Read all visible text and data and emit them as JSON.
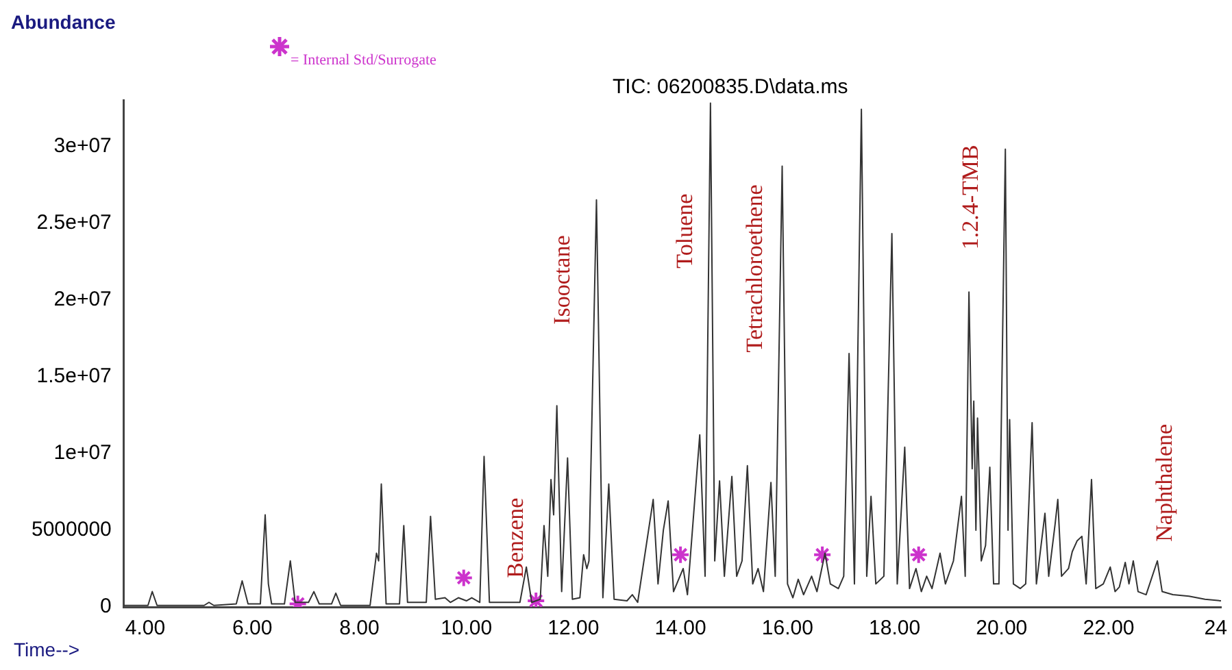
{
  "chart_data": {
    "type": "line",
    "title": "TIC: 06200835.D\\data.ms",
    "xlabel": "Time-->",
    "ylabel": "Abundance",
    "xlim": [
      3.6,
      24.1
    ],
    "ylim": [
      0,
      33000000.0
    ],
    "xticks": [
      {
        "value": 4,
        "label": "4.00"
      },
      {
        "value": 6,
        "label": "6.00"
      },
      {
        "value": 8,
        "label": "8.00"
      },
      {
        "value": 10,
        "label": "10.00"
      },
      {
        "value": 12,
        "label": "12.00"
      },
      {
        "value": 14,
        "label": "14.00"
      },
      {
        "value": 16,
        "label": "16.00"
      },
      {
        "value": 18,
        "label": "18.00"
      },
      {
        "value": 20,
        "label": "20.00"
      },
      {
        "value": 22,
        "label": "22.00"
      },
      {
        "value": 24,
        "label": "24"
      }
    ],
    "yticks": [
      0,
      5000000,
      {
        "value": 10000000.0,
        "label": "1e+07"
      },
      {
        "value": 15000000.0,
        "label": "1.5e+07"
      },
      {
        "value": 20000000.0,
        "label": "2e+07"
      },
      {
        "value": 25000000.0,
        "label": "2.5e+07"
      },
      {
        "value": 30000000.0,
        "label": "3e+07"
      }
    ],
    "grid": false,
    "legend": "top left",
    "series": [
      {
        "color": "#333333",
        "marker": "none",
        "x": [
          3.6,
          4.05,
          4.13,
          4.22,
          5.1,
          5.19,
          5.28,
          5.7,
          5.81,
          5.92,
          6.15,
          6.24,
          6.3,
          6.36,
          6.6,
          6.71,
          6.8,
          7.05,
          7.15,
          7.25,
          7.48,
          7.56,
          7.65,
          8.2,
          8.32,
          8.36,
          8.41,
          8.5,
          8.75,
          8.83,
          8.9,
          9.25,
          9.33,
          9.42,
          9.6,
          9.7,
          9.85,
          10.0,
          10.1,
          10.25,
          10.33,
          10.43,
          11.0,
          11.12,
          11.22,
          11.38,
          11.45,
          11.52,
          11.58,
          11.63,
          11.69,
          11.78,
          11.89,
          11.98,
          12.12,
          12.19,
          12.25,
          12.29,
          12.43,
          12.55,
          12.66,
          12.76,
          13.0,
          13.1,
          13.2,
          13.49,
          13.58,
          13.68,
          13.77,
          13.87,
          14.05,
          14.13,
          14.36,
          14.46,
          14.56,
          14.64,
          14.73,
          14.82,
          14.96,
          15.05,
          15.15,
          15.25,
          15.35,
          15.45,
          15.55,
          15.69,
          15.77,
          15.9,
          16.0,
          16.1,
          16.2,
          16.3,
          16.45,
          16.55,
          16.7,
          16.8,
          16.95,
          17.05,
          17.15,
          17.25,
          17.38,
          17.48,
          17.56,
          17.65,
          17.8,
          17.95,
          18.05,
          18.19,
          18.28,
          18.4,
          18.5,
          18.6,
          18.7,
          18.85,
          18.95,
          19.1,
          19.25,
          19.32,
          19.39,
          19.45,
          19.48,
          19.52,
          19.55,
          19.62,
          19.7,
          19.78,
          19.85,
          19.95,
          20.07,
          20.12,
          20.15,
          20.22,
          20.35,
          20.45,
          20.57,
          20.65,
          20.81,
          20.88,
          21.0,
          21.05,
          21.12,
          21.25,
          21.32,
          21.41,
          21.5,
          21.58,
          21.68,
          21.76,
          21.9,
          22.03,
          22.12,
          22.2,
          22.31,
          22.38,
          22.46,
          22.55,
          22.7,
          22.91,
          23.0,
          23.2,
          23.5,
          23.8,
          24.1
        ],
        "values": [
          100000.0,
          100000.0,
          1000000.0,
          100000.0,
          100000.0,
          300000.0,
          100000.0,
          200000.0,
          1700000.0,
          200000.0,
          200000.0,
          6000000.0,
          1500000.0,
          200000.0,
          200000.0,
          3000000.0,
          300000.0,
          300000.0,
          1000000.0,
          200000.0,
          200000.0,
          900000.0,
          100000.0,
          100000.0,
          3500000.0,
          3000000.0,
          8000000.0,
          200000.0,
          200000.0,
          5300000.0,
          300000.0,
          300000.0,
          5900000.0,
          500000.0,
          600000.0,
          300000.0,
          600000.0,
          400000.0,
          600000.0,
          300000.0,
          9800000.0,
          300000.0,
          300000.0,
          2600000.0,
          300000.0,
          500000.0,
          5300000.0,
          2000000.0,
          8300000.0,
          6000000.0,
          13100000.0,
          1000000.0,
          9700000.0,
          500000.0,
          600000.0,
          3400000.0,
          2500000.0,
          3000000.0,
          26500000.0,
          600000.0,
          8000000.0,
          500000.0,
          400000.0,
          800000.0,
          300000.0,
          7000000.0,
          1500000.0,
          5000000.0,
          6900000.0,
          1000000.0,
          2500000.0,
          800000.0,
          11200000.0,
          2000000.0,
          32800000.0,
          3000000.0,
          8200000.0,
          2000000.0,
          8500000.0,
          2000000.0,
          3000000.0,
          9200000.0,
          1500000.0,
          2500000.0,
          1000000.0,
          8100000.0,
          2000000.0,
          28700000.0,
          1500000.0,
          600000.0,
          1800000.0,
          800000.0,
          2000000.0,
          1000000.0,
          3500000.0,
          1500000.0,
          1200000.0,
          2000000.0,
          16500000.0,
          1500000.0,
          32400000.0,
          2000000.0,
          7200000.0,
          1500000.0,
          2000000.0,
          24300000.0,
          1500000.0,
          10400000.0,
          1200000.0,
          2500000.0,
          1000000.0,
          2000000.0,
          1200000.0,
          3500000.0,
          1500000.0,
          3000000.0,
          7200000.0,
          2000000.0,
          20500000.0,
          9000000.0,
          13400000.0,
          5000000.0,
          12300000.0,
          3000000.0,
          4000000.0,
          9100000.0,
          1500000.0,
          1500000.0,
          29800000.0,
          5000000.0,
          12200000.0,
          1500000.0,
          1200000.0,
          1500000.0,
          12000000.0,
          1500000.0,
          6100000.0,
          2000000.0,
          5400000.0,
          7000000.0,
          2000000.0,
          2500000.0,
          3600000.0,
          4300000.0,
          4600000.0,
          1500000.0,
          8300000.0,
          1200000.0,
          1500000.0,
          2600000.0,
          1000000.0,
          1300000.0,
          2900000.0,
          1500000.0,
          3000000.0,
          1000000.0,
          800000.0,
          3000000.0,
          1000000.0,
          800000.0,
          700000.0,
          500000.0,
          400000.0
        ]
      },
      {
        "type": "scatter",
        "name": "= Internal Std/Surrogate",
        "color": "#cc33cc",
        "marker": "cross",
        "x": [
          6.85,
          9.95,
          11.3,
          14.0,
          16.65,
          18.45
        ],
        "values": [
          200000.0,
          1900000.0,
          400000.0,
          3400000.0,
          3400000.0,
          3400000.0
        ]
      }
    ],
    "annotations": [
      {
        "text": "Benzene",
        "x": 11.12,
        "y": 2600000.0
      },
      {
        "text": "Isooctane",
        "x": 12.43,
        "y": 26500000.0
      },
      "Toluene",
      {
        "text": "Tetrachloroethene",
        "x": 15.9,
        "y": 28700000.0
      },
      {
        "text": "1.2.4-TMB",
        "x": 19.39,
        "y": 20500000.0
      },
      {
        "text": "Naphthalene",
        "x": 22.91,
        "y": 3000000.0
      }
    ]
  }
}
